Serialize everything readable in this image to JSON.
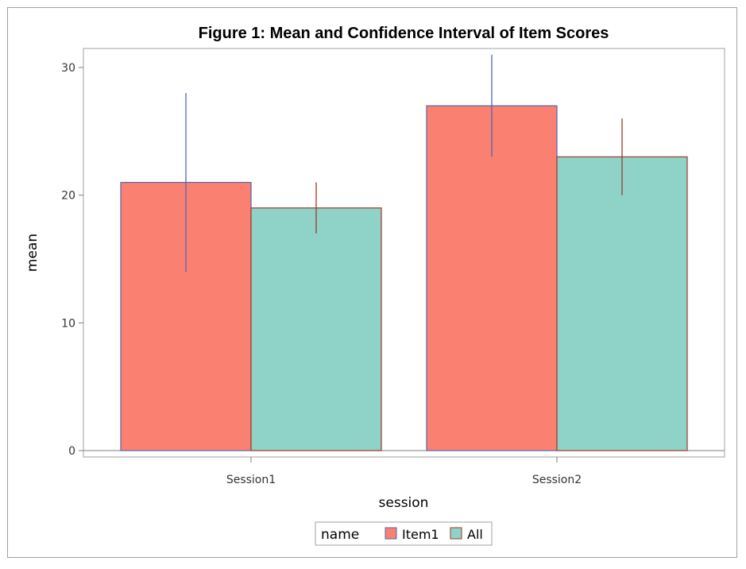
{
  "chart_data": {
    "type": "bar",
    "title": "Figure 1: Mean and Confidence Interval of Item Scores",
    "xlabel": "session",
    "ylabel": "mean",
    "categories": [
      "Session1",
      "Session2"
    ],
    "ylim": [
      0,
      31
    ],
    "yticks": [
      0,
      10,
      20,
      30
    ],
    "series": [
      {
        "name": "Item1",
        "values": [
          21,
          27
        ],
        "lower": [
          14,
          23
        ],
        "upper": [
          28,
          31
        ],
        "fill": "#fa8072",
        "outline": "#5566aa",
        "error_color": "#5566aa"
      },
      {
        "name": "All",
        "values": [
          19,
          23
        ],
        "lower": [
          17,
          20
        ],
        "upper": [
          21,
          26
        ],
        "fill": "#8fd3c8",
        "outline": "#9b3a2a",
        "error_color": "#9b3a2a"
      }
    ],
    "legend": {
      "title": "name",
      "position": "bottom-center"
    },
    "grid": false
  }
}
